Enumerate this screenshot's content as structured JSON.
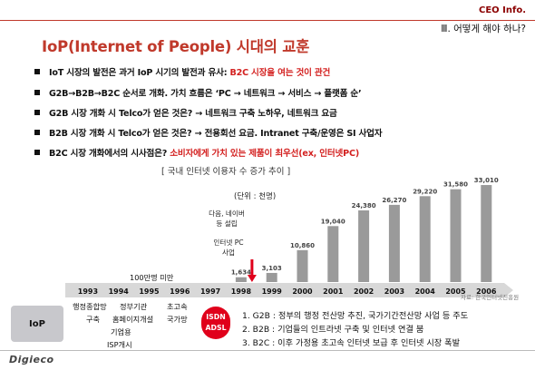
{
  "header": {
    "brand": "CEO Info.",
    "section": "Ⅲ. 어떻게 해야 하나?",
    "title": "IoP(Internet of People) 시대의 교훈"
  },
  "bullets": [
    {
      "text": "IoT 시장의 발전은 과거 IoP 시기의 발전과 유사: ",
      "highlight": "B2C 시장을 여는 것이 관건"
    },
    {
      "text": "G2B→B2B→B2C 순서로 개화. 가치 흐름은 ‘PC → 네트워크 → 서비스 → 플랫폼 순’",
      "highlight": ""
    },
    {
      "text": "G2B 시장 개화 시 Telco가 얻은 것은? → 네트워크 구축 노하우, 네트워크 요금",
      "highlight": ""
    },
    {
      "text": "B2B 시장 개화 시 Telco가 얻은 것은? → 전용회선 요금. Intranet 구축/운영은 SI 사업자",
      "highlight": ""
    },
    {
      "text": "B2C 시장 개화에서의 시사점은? ",
      "highlight": "소비자에게 가치 있는 제품이 최우선(ex, 인터넷PC)"
    }
  ],
  "chart_data": {
    "type": "bar",
    "title": "[ 국내 인터넷 이용자 수 증가 추이 ]",
    "unit": "(단위 : 천명)",
    "categories": [
      "1993",
      "1994",
      "1995",
      "1996",
      "1997",
      "1998",
      "1999",
      "2000",
      "2001",
      "2002",
      "2003",
      "2004",
      "2005",
      "2006"
    ],
    "values": [
      null,
      null,
      null,
      null,
      null,
      1634,
      3103,
      10860,
      19040,
      24380,
      26270,
      29220,
      31580,
      33010
    ],
    "value_labels": [
      "",
      "",
      "",
      "",
      "",
      "1,634",
      "3,103",
      "10,860",
      "19,040",
      "24,380",
      "26,270",
      "29,220",
      "31,580",
      "33,010"
    ],
    "ylim": [
      0,
      35000
    ],
    "source": "자료: 한국인터넷진흥원",
    "annotation_top": "100만명 미만",
    "callouts": [
      "다음, 네이버 등 설립",
      "인터넷 PC 사업"
    ]
  },
  "timeline": {
    "left_labels": [
      "행정종합망",
      "구축",
      "정부기관",
      "홈페이지개설",
      "기업용",
      "ISP개시"
    ],
    "mid_labels": [
      "초고속",
      "국가망"
    ],
    "isdn": [
      "ISDN",
      "ADSL"
    ]
  },
  "iop_label": "IoP",
  "notes": [
    "1. G2B : 정부의 행정 전산망 추진, 국가기간전산망 사업 등 주도",
    "2. B2B : 기업들의 인트라넷 구축 및 인터넷 연결 붐",
    "3. B2C : 이후 가정용 초고속 인터넷 보급 후 인터넷 시장 폭발"
  ],
  "footer_logo": "Digieco",
  "colors": {
    "accent": "#c0392b",
    "highlight": "#d3201f",
    "bar": "#9a9a9a",
    "arrow": "#e0001b"
  }
}
